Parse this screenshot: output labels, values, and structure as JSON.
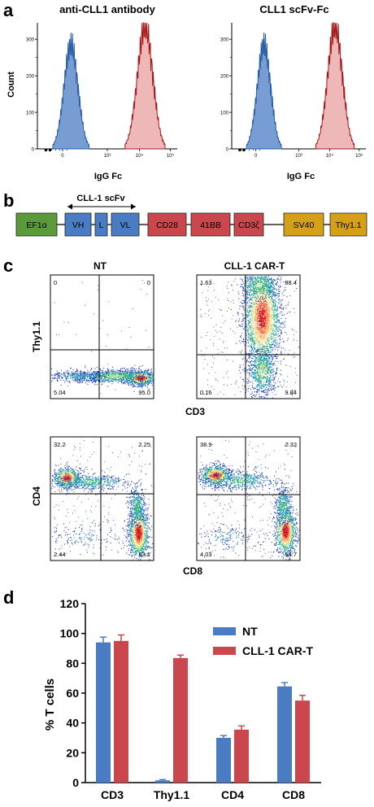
{
  "panel_labels": [
    "a",
    "b",
    "c",
    "d"
  ],
  "colors": {
    "blue_fill": "#4a7cc4",
    "blue_line": "#2b5fa8",
    "red_fill": "#e8a0a0",
    "red_line": "#a31919",
    "bar_blue": "#4a7cc4",
    "bar_red": "#c9474d",
    "box_green": "#5a9a3a",
    "box_blue": "#4a7cc4",
    "box_red": "#c9474d",
    "box_gold": "#d4a017"
  },
  "construct": {
    "scfv_label": "CLL-1 scFv",
    "elements": [
      {
        "label": "EF1α",
        "color": "green"
      },
      {
        "label": "VH",
        "color": "blue"
      },
      {
        "label": "L",
        "color": "blue"
      },
      {
        "label": "VL",
        "color": "blue"
      },
      {
        "label": "CD28",
        "color": "red"
      },
      {
        "label": "41BB",
        "color": "red"
      },
      {
        "label": "CD3ζ",
        "color": "red"
      },
      {
        "label": "SV40",
        "color": "gold"
      },
      {
        "label": "Thy1.1",
        "color": "gold"
      }
    ]
  },
  "chart_data": [
    {
      "type": "area",
      "title": "anti-CLL1 antibody",
      "xlabel": "IgG Fc",
      "ylabel": "Count",
      "yticks": [
        "0",
        "100",
        "200",
        "300"
      ],
      "xticks": [
        "0",
        "10³",
        "10⁴",
        "10⁵"
      ],
      "series": [
        {
          "color": "blue"
        },
        {
          "color": "red"
        }
      ]
    },
    {
      "type": "area",
      "title": "CLL1 scFv-Fc",
      "xlabel": "IgG Fc",
      "ylabel": "",
      "yticks": [
        "0",
        "100",
        "200",
        "300"
      ],
      "xticks": [
        "0",
        "10³",
        "10⁴",
        "10⁵"
      ],
      "series": [
        {
          "color": "blue"
        },
        {
          "color": "red"
        }
      ]
    },
    {
      "type": "scatter",
      "title": "NT",
      "xlabel": "CD3",
      "ylabel": "Thy1.1",
      "quadrants": {
        "ul": "0",
        "ur": "0",
        "ll": "5.04",
        "lr": "95.0"
      }
    },
    {
      "type": "scatter",
      "title": "CLL-1 CAR-T",
      "xlabel": "CD3",
      "ylabel": "",
      "quadrants": {
        "ul": "1.63",
        "ur": "88.4",
        "ll": "0.16",
        "lr": "9.84"
      }
    },
    {
      "type": "scatter",
      "title": "",
      "xlabel": "CD8",
      "ylabel": "CD4",
      "quadrants": {
        "ul": "32.2",
        "ur": "2.25",
        "ll": "2.44",
        "lr": "63.1"
      }
    },
    {
      "type": "scatter",
      "title": "",
      "xlabel": "CD8",
      "ylabel": "",
      "quadrants": {
        "ul": "38.9",
        "ur": "2.32",
        "ll": "4.03",
        "lr": "54.7"
      }
    },
    {
      "type": "bar",
      "categories": [
        "CD3",
        "Thy1.1",
        "CD4",
        "CD8"
      ],
      "series": [
        {
          "name": "NT",
          "values": [
            94,
            1.5,
            30,
            64.5
          ],
          "errors": [
            3.5,
            0.5,
            1.5,
            2.5
          ]
        },
        {
          "name": "CLL-1 CAR-T",
          "values": [
            95,
            83.5,
            35.5,
            55
          ],
          "errors": [
            4,
            2,
            2.5,
            3.5
          ]
        }
      ],
      "xlabel": "",
      "ylabel": "% T cells",
      "ylim": [
        0,
        120
      ],
      "yticks": [
        "0",
        "20",
        "40",
        "60",
        "80",
        "100",
        "120"
      ],
      "legend": "top-right"
    }
  ]
}
